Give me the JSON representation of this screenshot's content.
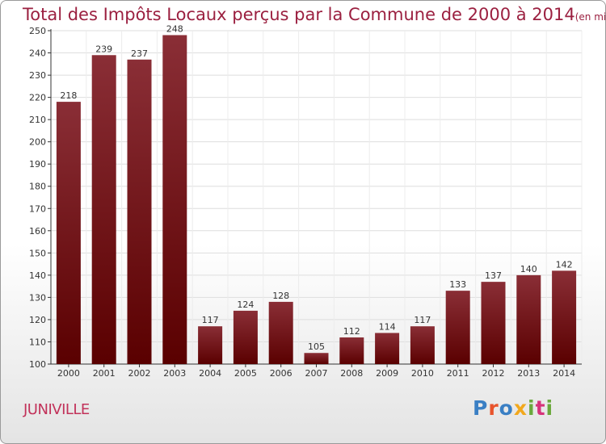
{
  "title": "Total des Impôts Locaux perçus par la Commune de 2000 à 2014",
  "unit": "(en milliers d'€)",
  "commune": "JUNIVILLE",
  "logo_text": "Proxiti",
  "colors": {
    "bar_top": "#8a2e36",
    "bar_bottom": "#5a0000",
    "title": "#9b2040",
    "commune": "#c2325a"
  },
  "chart_data": {
    "type": "bar",
    "title": "Total des Impôts Locaux perçus par la Commune de 2000 à 2014",
    "xlabel": "",
    "ylabel": "",
    "categories": [
      "2000",
      "2001",
      "2002",
      "2003",
      "2004",
      "2005",
      "2006",
      "2007",
      "2008",
      "2009",
      "2010",
      "2011",
      "2012",
      "2013",
      "2014"
    ],
    "values": [
      218,
      239,
      237,
      248,
      117,
      124,
      128,
      105,
      112,
      114,
      117,
      133,
      137,
      140,
      142
    ],
    "ylim": [
      100,
      250
    ],
    "yticks": [
      100,
      110,
      120,
      130,
      140,
      150,
      160,
      170,
      180,
      190,
      200,
      210,
      220,
      230,
      240,
      250
    ],
    "grid": true
  }
}
